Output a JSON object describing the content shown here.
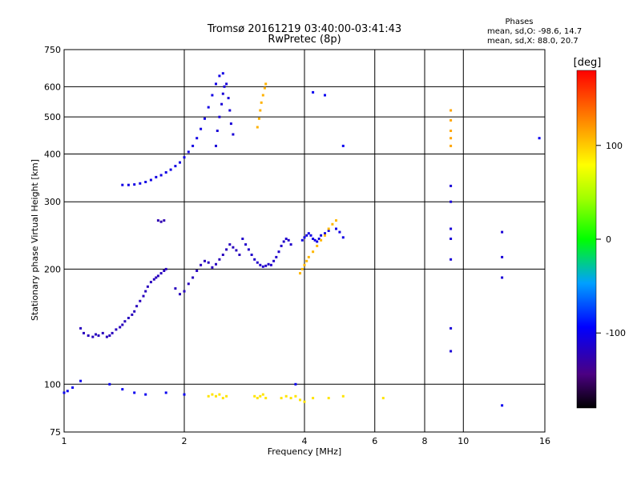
{
  "chart_data": {
    "type": "scatter",
    "title": "Tromsø 20161219 03:40:00-03:41:43",
    "subtitle": "RwPretec (8p)",
    "xlabel": "Frequency [MHz]",
    "ylabel": "Stationary phase Virtual Height [km]",
    "x_scale": "log",
    "y_scale": "log",
    "xlim": [
      1,
      16
    ],
    "ylim": [
      75,
      750
    ],
    "x_ticks": [
      1,
      2,
      4,
      6,
      8,
      10,
      16
    ],
    "y_ticks": [
      75,
      100,
      200,
      300,
      400,
      500,
      600,
      750
    ],
    "grid": true,
    "stats": {
      "header": "Phases",
      "line_o": "mean, sd,O: -98.6, 14.7",
      "line_x": "mean, sd,X:  88.0, 20.7"
    },
    "colorbar": {
      "label": "[deg]",
      "range": [
        -180,
        180
      ],
      "ticks": [
        100,
        0,
        -100
      ]
    },
    "point_series": [
      {
        "x": [
          1.4,
          1.45,
          1.5,
          1.55,
          1.6,
          1.65,
          1.7,
          1.75,
          1.8,
          1.85,
          1.9,
          1.95,
          2.0,
          2.05,
          2.1,
          2.15,
          2.2,
          2.25,
          2.3,
          2.35,
          2.4,
          2.45,
          2.5
        ],
        "y": [
          332,
          332,
          333,
          335,
          338,
          342,
          348,
          352,
          358,
          364,
          372,
          380,
          392,
          405,
          420,
          440,
          465,
          495,
          530,
          570,
          610,
          640,
          650
        ],
        "phase": -105
      },
      {
        "x": [
          2.4,
          2.42,
          2.45,
          2.48,
          2.5,
          2.52,
          2.55,
          2.58,
          2.6,
          2.62,
          2.65
        ],
        "y": [
          420,
          460,
          500,
          540,
          575,
          600,
          610,
          560,
          520,
          480,
          450
        ],
        "phase": -110
      },
      {
        "x": [
          1.72,
          1.75,
          1.78
        ],
        "y": [
          268,
          266,
          268
        ],
        "phase": -125
      },
      {
        "x": [
          1.1,
          1.12,
          1.15,
          1.18,
          1.2,
          1.22,
          1.25,
          1.28,
          1.3,
          1.32,
          1.35,
          1.38,
          1.4,
          1.42,
          1.45,
          1.48,
          1.5,
          1.52,
          1.55,
          1.58,
          1.6,
          1.62,
          1.65,
          1.68,
          1.7,
          1.72,
          1.75,
          1.78,
          1.8
        ],
        "y": [
          140,
          136,
          134,
          133,
          135,
          134,
          136,
          133,
          134,
          136,
          139,
          141,
          143,
          146,
          149,
          152,
          155,
          160,
          165,
          170,
          175,
          180,
          185,
          188,
          190,
          192,
          195,
          198,
          200
        ],
        "phase": -120
      },
      {
        "x": [
          1.9,
          1.95,
          2.0,
          2.05,
          2.1,
          2.15,
          2.2,
          2.25,
          2.3,
          2.35,
          2.4,
          2.45,
          2.5,
          2.55,
          2.6,
          2.65,
          2.7,
          2.75
        ],
        "y": [
          178,
          172,
          175,
          183,
          190,
          198,
          205,
          210,
          208,
          202,
          206,
          212,
          218,
          225,
          232,
          228,
          224,
          218
        ],
        "phase": -120
      },
      {
        "x": [
          2.8,
          2.85,
          2.9,
          2.95,
          3.0,
          3.05,
          3.1,
          3.15,
          3.2,
          3.25,
          3.3,
          3.35,
          3.4,
          3.45,
          3.5,
          3.55,
          3.6,
          3.65,
          3.7
        ],
        "y": [
          240,
          232,
          225,
          218,
          212,
          208,
          205,
          203,
          204,
          206,
          205,
          210,
          215,
          222,
          230,
          236,
          240,
          238,
          232
        ],
        "phase": -115
      },
      {
        "x": [
          3.95,
          4.0,
          4.05,
          4.1,
          4.15,
          4.2,
          4.25,
          4.3,
          4.35,
          4.4,
          4.5,
          4.6,
          4.8,
          4.9,
          5.0
        ],
        "y": [
          238,
          242,
          245,
          248,
          245,
          240,
          238,
          236,
          240,
          245,
          248,
          252,
          255,
          250,
          242
        ],
        "phase": -105
      },
      {
        "x": [
          3.05,
          3.08,
          3.1,
          3.12,
          3.15,
          3.18,
          3.2
        ],
        "y": [
          470,
          495,
          520,
          545,
          570,
          595,
          610
        ],
        "phase": 110
      },
      {
        "x": [
          3.9,
          3.95,
          4.0,
          4.05,
          4.1,
          4.2,
          4.3,
          4.4,
          4.5,
          4.6,
          4.7,
          4.8
        ],
        "y": [
          195,
          200,
          205,
          210,
          215,
          222,
          230,
          238,
          245,
          255,
          262,
          268
        ],
        "phase": 108
      },
      {
        "x": [
          9.3,
          9.3,
          9.3,
          9.3,
          9.3
        ],
        "y": [
          520,
          490,
          460,
          440,
          420
        ],
        "phase": 115
      },
      {
        "x": [
          2.3,
          2.35,
          2.4,
          2.45,
          2.5,
          2.55,
          3.0,
          3.05,
          3.1,
          3.15,
          3.2,
          3.5,
          3.6,
          3.7,
          3.8,
          3.9,
          4.0,
          4.2,
          4.6,
          5.0,
          6.3
        ],
        "y": [
          93,
          94,
          93,
          94,
          92,
          93,
          93,
          92,
          93,
          94,
          92,
          92,
          93,
          92,
          93,
          91,
          90,
          92,
          92,
          93,
          92
        ],
        "phase": 90
      },
      {
        "x": [
          9.3,
          9.3,
          9.3,
          9.3,
          9.3,
          9.3,
          9.3,
          12.5,
          12.5,
          12.5
        ],
        "y": [
          330,
          300,
          255,
          240,
          212,
          140,
          122,
          250,
          215,
          190
        ],
        "phase": -110
      },
      {
        "x": [
          1.0,
          1.02,
          1.05,
          1.1,
          1.3,
          1.4,
          1.5,
          1.6,
          1.8,
          2.0,
          3.8,
          4.2,
          4.5,
          5.0,
          12.5,
          15.5
        ],
        "y": [
          95,
          96,
          98,
          102,
          100,
          97,
          95,
          94,
          95,
          94,
          100,
          580,
          570,
          420,
          88,
          440
        ],
        "phase": -100
      }
    ]
  }
}
